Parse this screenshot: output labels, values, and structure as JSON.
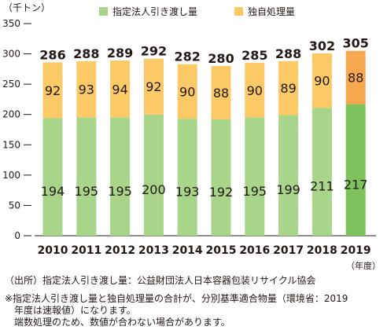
{
  "chart_data": {
    "type": "bar",
    "stacked": true,
    "unit_label": "（千トン）",
    "year_unit": "（年度）",
    "categories": [
      "2010",
      "2011",
      "2012",
      "2013",
      "2014",
      "2015",
      "2016",
      "2017",
      "2018",
      "2019"
    ],
    "series": [
      {
        "name": "指定法人引き渡し量",
        "values": [
          194,
          195,
          195,
          200,
          193,
          192,
          195,
          199,
          211,
          217
        ],
        "color": "#a8d58a",
        "highlight_color": "#7dc25a"
      },
      {
        "name": "独自処理量",
        "values": [
          92,
          93,
          94,
          92,
          90,
          88,
          90,
          89,
          90,
          88
        ],
        "color": "#fbc965",
        "highlight_color": "#f5a84e"
      }
    ],
    "totals": [
      286,
      288,
      289,
      292,
      282,
      280,
      285,
      288,
      302,
      305
    ],
    "y_ticks": [
      0,
      50,
      100,
      150,
      200,
      250,
      300,
      350
    ],
    "ylim": [
      0,
      350
    ],
    "highlight_index": 9,
    "grid": false,
    "legend_position": "top"
  },
  "notes": {
    "source": "（出所）指定法人引き渡し量：公益財団法人日本容器包装リサイクル協会",
    "note_line1": "※指定法人引き渡し量と独自処理量の合計が、分別基準適合物量（環境省：2019",
    "note_line2": "　年度は速報値）になります。",
    "note_line3": "　端数処理のため、数値が合わない場合があります。"
  }
}
